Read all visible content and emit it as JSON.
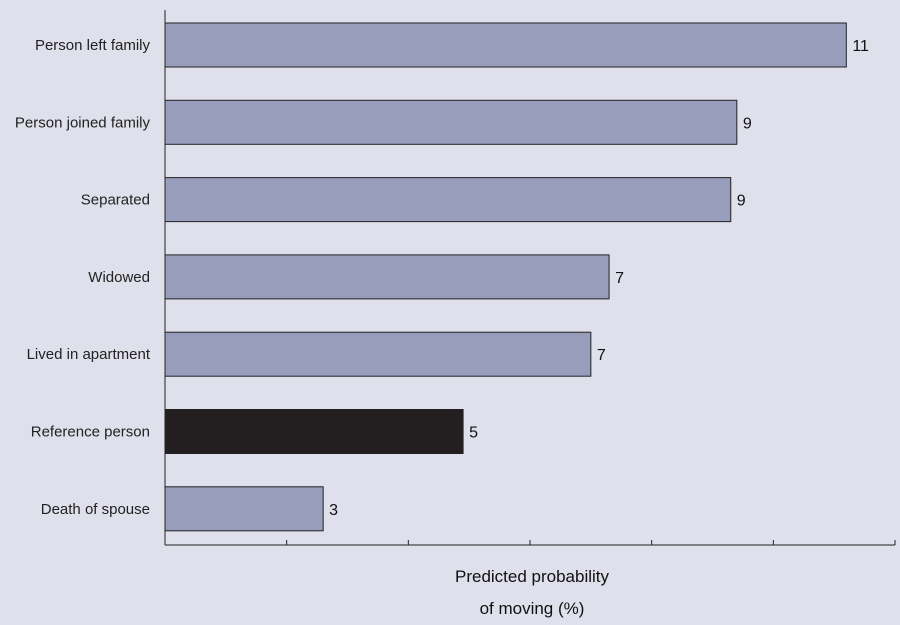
{
  "chart_data": {
    "type": "bar",
    "orientation": "horizontal",
    "categories": [
      "Person left family",
      "Person joined family",
      "Separated",
      "Widowed",
      "Lived in apartment",
      "Reference person",
      "Death of spouse"
    ],
    "values": [
      11.2,
      9.4,
      9.3,
      7.3,
      7.0,
      4.9,
      2.6
    ],
    "value_labels": [
      "11",
      "9",
      "9",
      "7",
      "7",
      "5",
      "3"
    ],
    "highlight_index": 5,
    "xlabel_lines": [
      "Predicted probability",
      "of moving (%)"
    ],
    "xlim": [
      0,
      12
    ],
    "grid": false,
    "colors": {
      "bar": "#999dbc",
      "highlight": "#231f20",
      "background": "#dfe0eb",
      "axis": "#222222"
    }
  }
}
